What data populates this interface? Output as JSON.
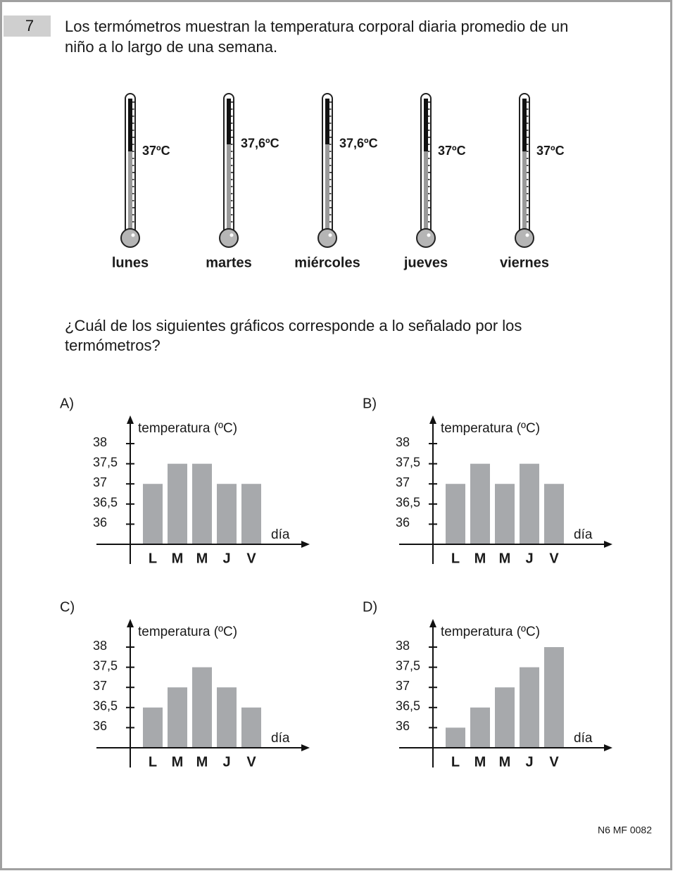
{
  "question": {
    "number": "7",
    "text_lines": [
      "Los termómetros muestran la temperatura corporal diaria promedio de un",
      "niño a lo largo de una semana."
    ],
    "thermometers": [
      {
        "day": "lunes",
        "label": "37ºC",
        "value": 37
      },
      {
        "day": "martes",
        "label": "37,6ºC",
        "value": 37.6
      },
      {
        "day": "miércoles",
        "label": "37,6ºC",
        "value": 37.6
      },
      {
        "day": "jueves",
        "label": "37ºC",
        "value": 37
      },
      {
        "day": "viernes",
        "label": "37ºC",
        "value": 37
      }
    ]
  },
  "prompt_lines": [
    "¿Cuál de los siguientes gráficos corresponde a lo señalado por los",
    "termómetros?"
  ],
  "options": [
    {
      "letter": "A)",
      "chart": {
        "type": "bar",
        "y_label": "temperatura (ºC)",
        "x_label": "día",
        "categories": [
          "L",
          "M",
          "M",
          "J",
          "V"
        ],
        "values": [
          37,
          37.5,
          37.5,
          37,
          37
        ],
        "color": "#a7a9ac",
        "ylim": [
          35.5,
          38.7
        ],
        "yticks": [
          36,
          {
            "value": 36.5,
            "label": "36,5"
          },
          37,
          {
            "value": 37.5,
            "label": "37,5"
          },
          38
        ]
      }
    },
    {
      "letter": "B)",
      "chart": {
        "type": "bar",
        "y_label": "temperatura (ºC)",
        "x_label": "día",
        "categories": [
          "L",
          "M",
          "M",
          "J",
          "V"
        ],
        "values": [
          37,
          37.5,
          37,
          37.5,
          37
        ],
        "color": "#a7a9ac",
        "ylim": [
          35.5,
          38.7
        ],
        "yticks": [
          36,
          {
            "value": 36.5,
            "label": "36,5"
          },
          37,
          {
            "value": 37.5,
            "label": "37,5"
          },
          38
        ]
      }
    },
    {
      "letter": "C)",
      "chart": {
        "type": "bar",
        "y_label": "temperatura (ºC)",
        "x_label": "día",
        "categories": [
          "L",
          "M",
          "M",
          "J",
          "V"
        ],
        "values": [
          36.5,
          37,
          37.5,
          37,
          36.5
        ],
        "color": "#a7a9ac",
        "ylim": [
          35.5,
          38.7
        ],
        "yticks": [
          36,
          {
            "value": 36.5,
            "label": "36,5"
          },
          37,
          {
            "value": 37.5,
            "label": "37,5"
          },
          38
        ]
      }
    },
    {
      "letter": "D)",
      "chart": {
        "type": "bar",
        "y_label": "temperatura (ºC)",
        "x_label": "día",
        "categories": [
          "L",
          "M",
          "M",
          "J",
          "V"
        ],
        "values": [
          36,
          36.5,
          37,
          37.5,
          38
        ],
        "color": "#a7a9ac",
        "ylim": [
          35.5,
          38.7
        ],
        "yticks": [
          36,
          {
            "value": 36.5,
            "label": "36,5"
          },
          37,
          {
            "value": 37.5,
            "label": "37,5"
          },
          38
        ]
      }
    }
  ],
  "footer": "N6 MF 0082"
}
